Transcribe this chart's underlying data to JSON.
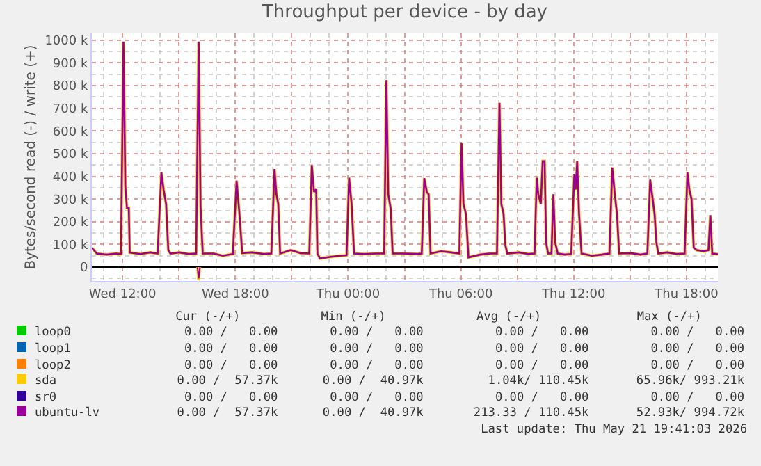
{
  "chart_data": {
    "type": "line",
    "title": "Throughput per device - by day",
    "ylabel": "Bytes/second read (-) / write (+)",
    "xlim": [
      "2026-05-20T10:22",
      "2026-05-21T19:40"
    ],
    "xticks": [
      {
        "value": "2026-05-20T12:00",
        "label": "Wed 12:00"
      },
      {
        "value": "2026-05-20T15:00",
        "label": null
      },
      {
        "value": "2026-05-20T18:00",
        "label": "Wed 18:00"
      },
      {
        "value": "2026-05-20T21:00",
        "label": null
      },
      {
        "value": "2026-05-21T00:00",
        "label": "Thu 00:00"
      },
      {
        "value": "2026-05-21T03:00",
        "label": null
      },
      {
        "value": "2026-05-21T06:00",
        "label": "Thu 06:00"
      },
      {
        "value": "2026-05-21T09:00",
        "label": null
      },
      {
        "value": "2026-05-21T12:00",
        "label": "Thu 12:00"
      },
      {
        "value": "2026-05-21T15:00",
        "label": null
      },
      {
        "value": "2026-05-21T18:00",
        "label": "Thu 18:00"
      }
    ],
    "ylim": [
      -61,
      1030
    ],
    "yticks": [
      0,
      {
        "value": 100,
        "label": "100 k"
      },
      {
        "value": 200,
        "label": "200 k"
      },
      {
        "value": 300,
        "label": "300 k"
      },
      {
        "value": 400,
        "label": "400 k"
      },
      {
        "value": 500,
        "label": "500 k"
      },
      {
        "value": 600,
        "label": "600 k"
      },
      {
        "value": 700,
        "label": "700 k"
      },
      {
        "value": 800,
        "label": "800 k"
      },
      {
        "value": 900,
        "label": "900 k"
      },
      {
        "value": 1000,
        "label": "1000 k"
      }
    ],
    "grid": true,
    "legend": "bottom",
    "marker": "none",
    "line_style": "solid",
    "series": [
      {
        "name": "loop0",
        "color": "#00cc00"
      },
      {
        "name": "loop1",
        "color": "#0066b3"
      },
      {
        "name": "loop2",
        "color": "#ff8000"
      },
      {
        "name": "sda",
        "color": "#ffcc00",
        "x": [
          "2026-05-20T10:22",
          "2026-05-20T10:38",
          "2026-05-20T11:09",
          "2026-05-20T11:40",
          "2026-05-20T11:55",
          "2026-05-20T12:03",
          "2026-05-20T12:09",
          "2026-05-20T12:14",
          "2026-05-20T12:20",
          "2026-05-20T12:23",
          "2026-05-20T12:57",
          "2026-05-20T13:28",
          "2026-05-20T13:52",
          "2026-05-20T14:04",
          "2026-05-20T14:11",
          "2026-05-20T14:19",
          "2026-05-20T14:26",
          "2026-05-20T14:33",
          "2026-05-20T15:01",
          "2026-05-20T15:32",
          "2026-05-20T15:55",
          "2026-05-20T16:03",
          "2026-05-20T16:09",
          "2026-05-20T16:16",
          "2026-05-20T16:50",
          "2026-05-20T17:20",
          "2026-05-20T17:52",
          "2026-05-20T18:04",
          "2026-05-20T18:13",
          "2026-05-20T18:22",
          "2026-05-20T18:53",
          "2026-05-20T19:32",
          "2026-05-20T19:55",
          "2026-05-20T20:05",
          "2026-05-20T20:11",
          "2026-05-20T20:17",
          "2026-05-20T20:23",
          "2026-05-20T20:57",
          "2026-05-20T21:28",
          "2026-05-20T21:56",
          "2026-05-20T22:04",
          "2026-05-20T22:11",
          "2026-05-20T22:18",
          "2026-05-20T22:22",
          "2026-05-20T22:30",
          "2026-05-20T23:01",
          "2026-05-20T23:32",
          "2026-05-20T23:55",
          "2026-05-21T00:03",
          "2026-05-21T00:11",
          "2026-05-21T00:19",
          "2026-05-21T00:50",
          "2026-05-21T01:28",
          "2026-05-21T01:55",
          "2026-05-21T02:02",
          "2026-05-21T02:08",
          "2026-05-21T02:16",
          "2026-05-21T02:22",
          "2026-05-21T02:53",
          "2026-05-21T03:40",
          "2026-05-21T03:55",
          "2026-05-21T04:03",
          "2026-05-21T04:11",
          "2026-05-21T04:17",
          "2026-05-21T04:23",
          "2026-05-21T04:57",
          "2026-05-21T05:28",
          "2026-05-21T05:55",
          "2026-05-21T06:02",
          "2026-05-21T06:08",
          "2026-05-21T06:16",
          "2026-05-21T06:24",
          "2026-05-21T07:01",
          "2026-05-21T07:32",
          "2026-05-21T07:55",
          "2026-05-21T08:03",
          "2026-05-21T08:09",
          "2026-05-21T08:16",
          "2026-05-21T08:22",
          "2026-05-21T08:28",
          "2026-05-21T09:05",
          "2026-05-21T09:36",
          "2026-05-21T09:55",
          "2026-05-21T10:02",
          "2026-05-21T10:07",
          "2026-05-21T10:15",
          "2026-05-21T10:21",
          "2026-05-21T10:27",
          "2026-05-21T10:32",
          "2026-05-21T10:38",
          "2026-05-21T10:49",
          "2026-05-21T10:55",
          "2026-05-21T11:01",
          "2026-05-21T11:09",
          "2026-05-21T11:32",
          "2026-05-21T11:52",
          "2026-05-21T12:02",
          "2026-05-21T12:06",
          "2026-05-21T12:11",
          "2026-05-21T12:17",
          "2026-05-21T12:25",
          "2026-05-21T12:58",
          "2026-05-21T13:29",
          "2026-05-21T13:54",
          "2026-05-21T14:03",
          "2026-05-21T14:11",
          "2026-05-21T14:18",
          "2026-05-21T14:25",
          "2026-05-21T15:02",
          "2026-05-21T15:33",
          "2026-05-21T15:55",
          "2026-05-21T16:04",
          "2026-05-21T16:10",
          "2026-05-21T16:18",
          "2026-05-21T16:24",
          "2026-05-21T16:30",
          "2026-05-21T16:58",
          "2026-05-21T17:29",
          "2026-05-21T17:54",
          "2026-05-21T18:03",
          "2026-05-21T18:09",
          "2026-05-21T18:16",
          "2026-05-21T18:23",
          "2026-05-21T18:32",
          "2026-05-21T18:54",
          "2026-05-21T19:10",
          "2026-05-21T19:16",
          "2026-05-21T19:22",
          "2026-05-21T19:40"
        ],
        "values": [
          85,
          60,
          55,
          60,
          58,
          993,
          353,
          261,
          261,
          64,
          58,
          65,
          60,
          417,
          342,
          278,
          75,
          60,
          65,
          58,
          60,
          992,
          268,
          60,
          60,
          50,
          58,
          381,
          235,
          62,
          65,
          58,
          60,
          432,
          321,
          278,
          60,
          75,
          62,
          60,
          450,
          332,
          342,
          60,
          38,
          45,
          50,
          52,
          394,
          278,
          60,
          58,
          60,
          60,
          824,
          321,
          257,
          60,
          60,
          58,
          60,
          392,
          332,
          321,
          60,
          70,
          65,
          60,
          546,
          278,
          235,
          43,
          55,
          60,
          60,
          724,
          278,
          235,
          96,
          60,
          65,
          58,
          60,
          394,
          321,
          278,
          467,
          467,
          107,
          60,
          60,
          321,
          107,
          60,
          55,
          58,
          411,
          342,
          467,
          235,
          60,
          50,
          55,
          60,
          439,
          321,
          235,
          60,
          62,
          55,
          60,
          385,
          321,
          235,
          107,
          60,
          65,
          58,
          60,
          417,
          342,
          300,
          86,
          75,
          70,
          75,
          229,
          60,
          57
        ]
      },
      {
        "color": "#ffcc00",
        "x": [
          "2026-05-20T15:59",
          "2026-05-20T16:03",
          "2026-05-20T16:07"
        ],
        "values": [
          0,
          -58,
          0
        ]
      },
      {
        "name": "sr0",
        "color": "#330099"
      },
      {
        "name": "ubuntu-lv",
        "color": "#990099",
        "x": [
          "2026-05-20T10:22",
          "2026-05-20T10:38",
          "2026-05-20T11:09",
          "2026-05-20T11:40",
          "2026-05-20T11:55",
          "2026-05-20T12:03",
          "2026-05-20T12:09",
          "2026-05-20T12:14",
          "2026-05-20T12:20",
          "2026-05-20T12:23",
          "2026-05-20T12:57",
          "2026-05-20T13:28",
          "2026-05-20T13:52",
          "2026-05-20T14:04",
          "2026-05-20T14:11",
          "2026-05-20T14:19",
          "2026-05-20T14:26",
          "2026-05-20T14:33",
          "2026-05-20T15:01",
          "2026-05-20T15:32",
          "2026-05-20T15:55",
          "2026-05-20T16:03",
          "2026-05-20T16:09",
          "2026-05-20T16:16",
          "2026-05-20T16:50",
          "2026-05-20T17:20",
          "2026-05-20T17:52",
          "2026-05-20T18:04",
          "2026-05-20T18:13",
          "2026-05-20T18:22",
          "2026-05-20T18:53",
          "2026-05-20T19:32",
          "2026-05-20T19:55",
          "2026-05-20T20:05",
          "2026-05-20T20:11",
          "2026-05-20T20:17",
          "2026-05-20T20:23",
          "2026-05-20T20:57",
          "2026-05-20T21:28",
          "2026-05-20T21:56",
          "2026-05-20T22:04",
          "2026-05-20T22:11",
          "2026-05-20T22:18",
          "2026-05-20T22:22",
          "2026-05-20T22:30",
          "2026-05-20T23:01",
          "2026-05-20T23:32",
          "2026-05-20T23:55",
          "2026-05-21T00:03",
          "2026-05-21T00:11",
          "2026-05-21T00:19",
          "2026-05-21T00:50",
          "2026-05-21T01:28",
          "2026-05-21T01:55",
          "2026-05-21T02:02",
          "2026-05-21T02:08",
          "2026-05-21T02:16",
          "2026-05-21T02:22",
          "2026-05-21T02:53",
          "2026-05-21T03:40",
          "2026-05-21T03:55",
          "2026-05-21T04:03",
          "2026-05-21T04:11",
          "2026-05-21T04:17",
          "2026-05-21T04:23",
          "2026-05-21T04:57",
          "2026-05-21T05:28",
          "2026-05-21T05:55",
          "2026-05-21T06:02",
          "2026-05-21T06:08",
          "2026-05-21T06:16",
          "2026-05-21T06:24",
          "2026-05-21T07:01",
          "2026-05-21T07:32",
          "2026-05-21T07:55",
          "2026-05-21T08:03",
          "2026-05-21T08:09",
          "2026-05-21T08:16",
          "2026-05-21T08:22",
          "2026-05-21T08:28",
          "2026-05-21T09:05",
          "2026-05-21T09:36",
          "2026-05-21T09:55",
          "2026-05-21T10:02",
          "2026-05-21T10:07",
          "2026-05-21T10:15",
          "2026-05-21T10:21",
          "2026-05-21T10:27",
          "2026-05-21T10:32",
          "2026-05-21T10:38",
          "2026-05-21T10:49",
          "2026-05-21T10:55",
          "2026-05-21T11:01",
          "2026-05-21T11:09",
          "2026-05-21T11:32",
          "2026-05-21T11:52",
          "2026-05-21T12:02",
          "2026-05-21T12:06",
          "2026-05-21T12:11",
          "2026-05-21T12:17",
          "2026-05-21T12:25",
          "2026-05-21T12:58",
          "2026-05-21T13:29",
          "2026-05-21T13:54",
          "2026-05-21T14:03",
          "2026-05-21T14:11",
          "2026-05-21T14:18",
          "2026-05-21T14:25",
          "2026-05-21T15:02",
          "2026-05-21T15:33",
          "2026-05-21T15:55",
          "2026-05-21T16:04",
          "2026-05-21T16:10",
          "2026-05-21T16:18",
          "2026-05-21T16:24",
          "2026-05-21T16:30",
          "2026-05-21T16:58",
          "2026-05-21T17:29",
          "2026-05-21T17:54",
          "2026-05-21T18:03",
          "2026-05-21T18:09",
          "2026-05-21T18:16",
          "2026-05-21T18:23",
          "2026-05-21T18:32",
          "2026-05-21T18:54",
          "2026-05-21T19:10",
          "2026-05-21T19:16",
          "2026-05-21T19:22",
          "2026-05-21T19:40"
        ],
        "values": [
          85,
          60,
          55,
          60,
          58,
          994,
          353,
          261,
          261,
          64,
          58,
          65,
          60,
          417,
          342,
          278,
          75,
          60,
          65,
          58,
          60,
          994,
          268,
          60,
          60,
          50,
          58,
          381,
          235,
          62,
          65,
          58,
          60,
          432,
          321,
          278,
          60,
          75,
          62,
          60,
          450,
          332,
          342,
          60,
          38,
          45,
          50,
          52,
          394,
          278,
          60,
          58,
          60,
          60,
          824,
          321,
          257,
          60,
          60,
          58,
          60,
          392,
          332,
          321,
          60,
          70,
          65,
          60,
          546,
          278,
          235,
          43,
          55,
          60,
          60,
          724,
          278,
          235,
          96,
          60,
          65,
          58,
          60,
          394,
          321,
          278,
          467,
          467,
          107,
          60,
          60,
          321,
          107,
          60,
          55,
          58,
          411,
          342,
          467,
          235,
          60,
          50,
          55,
          60,
          439,
          321,
          235,
          60,
          62,
          55,
          60,
          385,
          321,
          235,
          107,
          60,
          65,
          58,
          60,
          417,
          342,
          300,
          86,
          75,
          70,
          75,
          229,
          60,
          57
        ]
      },
      {
        "color": "#990099",
        "x": [
          "2026-05-20T15:59",
          "2026-05-20T16:03",
          "2026-05-20T16:07"
        ],
        "values": [
          0,
          -50,
          0
        ]
      }
    ],
    "annotations": [
      "Cur (-/+)",
      "Min (-/+)",
      "Avg (-/+)",
      "Max (-/+)",
      "0.00 /   0.00",
      "0.00 /   0.00",
      "0.00 /   0.00",
      "0.00 /   0.00",
      "0.00 /   0.00",
      "0.00 /   0.00",
      "0.00 /   0.00",
      "0.00 /   0.00",
      "0.00 /   0.00",
      "0.00 /   0.00",
      "0.00 /   0.00",
      "0.00 /   0.00",
      "0.00 /  57.37k",
      "0.00 /  40.97k",
      "1.04k/ 110.45k",
      "65.96k/ 993.21k",
      "0.00 /   0.00",
      "0.00 /   0.00",
      "0.00 /   0.00",
      "0.00 /   0.00",
      "0.00 /  57.37k",
      "0.00 /  40.97k",
      "213.33 / 110.45k",
      "52.93k/ 994.72k",
      "Last update: Thu May 21 19:41:03 2026"
    ]
  }
}
